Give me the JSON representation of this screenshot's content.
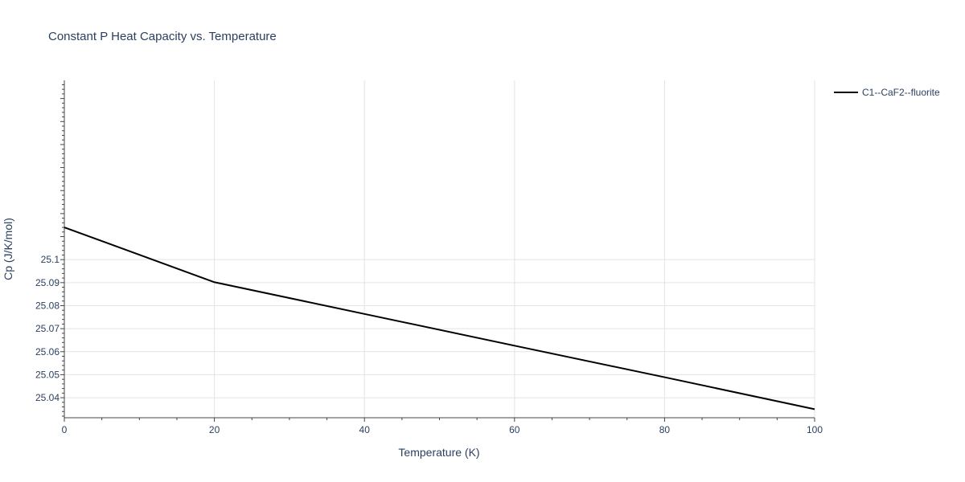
{
  "chart_data": {
    "type": "line",
    "title": "Constant P Heat Capacity vs. Temperature",
    "xlabel": "Temperature (K)",
    "ylabel": "Cp (J/K/mol)",
    "xlim": [
      0,
      100
    ],
    "ylim": [
      25.0313,
      25.1779
    ],
    "x_ticks": [
      0,
      20,
      40,
      60,
      80,
      100
    ],
    "x_tick_labels": [
      "0",
      "20",
      "40",
      "60",
      "80",
      "100"
    ],
    "y_ticks": [
      25.04,
      25.05,
      25.06,
      25.07,
      25.08,
      25.09,
      25.1
    ],
    "y_tick_labels": [
      "25.04",
      "25.05",
      "25.06",
      "25.07",
      "25.08",
      "25.09",
      "25.1"
    ],
    "grid": true,
    "legend_position": "top-right",
    "series": [
      {
        "name": "C1--CaF2--fluorite",
        "color": "#000000",
        "x": [
          0,
          20,
          40,
          60,
          80,
          100
        ],
        "y": [
          25.114,
          25.0902,
          25.0764,
          25.0626,
          25.0489,
          25.035
        ]
      }
    ]
  }
}
